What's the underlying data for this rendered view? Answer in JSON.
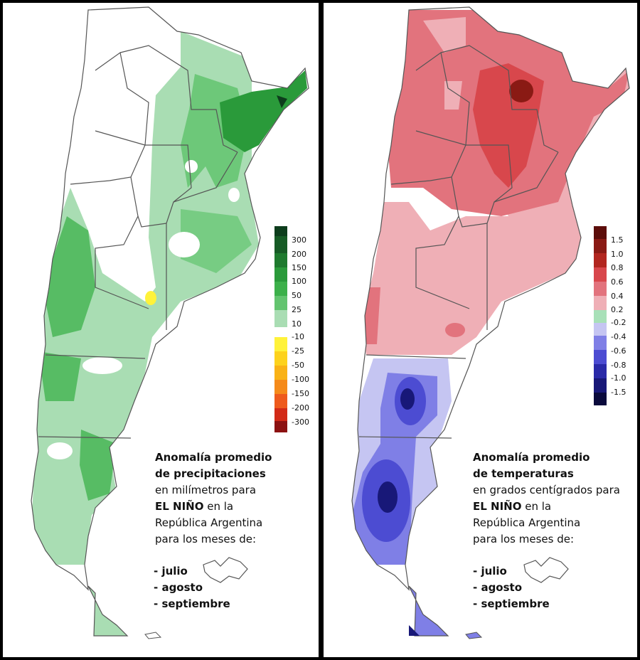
{
  "precip": {
    "title_line1": "Anomalía promedio",
    "title_line2": "de precipitaciones",
    "unit_line": "en milímetros para",
    "event": "EL NIÑO",
    "event_suffix": " en la",
    "country": "República Argentina",
    "months_intro": "para los meses de:",
    "months": [
      "- julio",
      "- agosto",
      "- septiembre"
    ],
    "legend_ticks": [
      "300",
      "200",
      "150",
      "100",
      "50",
      "25",
      "10",
      "-10",
      "-25",
      "-50",
      "-100",
      "-150",
      "-200",
      "-300"
    ],
    "legend_colors": [
      "#0d3d1c",
      "#165b25",
      "#1e7a2e",
      "#2a9a3a",
      "#3cb04a",
      "#63c46f",
      "#a9ddb3",
      "#ffffff",
      "#fff23a",
      "#fdd21c",
      "#f9b216",
      "#f58a1a",
      "#ee5a1c",
      "#d22a17",
      "#8c1111"
    ]
  },
  "temp": {
    "title_line1": "Anomalía promedio",
    "title_line2": "de temperaturas",
    "unit_line": "en grados centígrados para",
    "event": "EL NIÑO",
    "event_suffix": " en la",
    "country": "República Argentina",
    "months_intro": "para los meses de:",
    "months": [
      "- julio",
      "- agosto",
      "- septiembre"
    ],
    "legend_ticks": [
      "1.5",
      "1.0",
      "0.8",
      "0.6",
      "0.4",
      "0.2",
      "-0.2",
      "-0.4",
      "-0.6",
      "-0.8",
      "-1.0",
      "-1.5"
    ],
    "legend_colors": [
      "#5c0d0a",
      "#8a1a14",
      "#b2261f",
      "#d8474c",
      "#e2737d",
      "#efafb6",
      "#ffffff",
      "#c5c5f2",
      "#7f7fe6",
      "#4c4cd2",
      "#2a2aa8",
      "#181878",
      "#0a0a3c"
    ]
  }
}
